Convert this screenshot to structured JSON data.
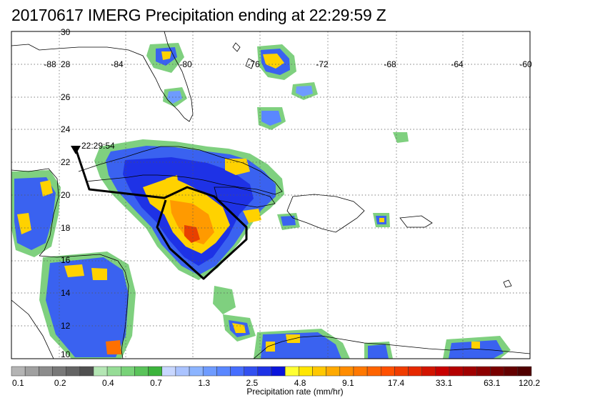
{
  "title": "20170617 IMERG Precipitation ending at 22:29:59 Z",
  "map": {
    "lon_labels": [
      "-88",
      "-84",
      "-80",
      "-76",
      "-72",
      "-68",
      "-64",
      "-60"
    ],
    "lat_labels": [
      "30",
      "28",
      "26",
      "24",
      "22",
      "20",
      "18",
      "16",
      "14",
      "12",
      "10"
    ],
    "track_time_label": "22:29:54"
  },
  "colorbar": {
    "colors": [
      "#b4b4b4",
      "#a0a0a0",
      "#8c8c8c",
      "#787878",
      "#646464",
      "#505050",
      "#b4e6b4",
      "#96dc96",
      "#78d278",
      "#5ac35a",
      "#3cb43c",
      "#c8d7ff",
      "#aac3ff",
      "#8cb4ff",
      "#6e9bff",
      "#5a87ff",
      "#466eff",
      "#3250f0",
      "#1e32e6",
      "#0a14dc",
      "#ffff32",
      "#ffe600",
      "#ffc800",
      "#ffaa00",
      "#ff8c00",
      "#ff7800",
      "#ff6400",
      "#ff5000",
      "#f03c00",
      "#e62800",
      "#d21400",
      "#c80000",
      "#b40000",
      "#a00000",
      "#8c0000",
      "#780000",
      "#640000",
      "#500000"
    ],
    "tick_labels": [
      "0.1",
      "0.2",
      "0.4",
      "0.7",
      "1.3",
      "2.5",
      "4.8",
      "9.1",
      "17.4",
      "33.1",
      "63.1",
      "120.2"
    ],
    "label": "Precipitation rate (mm/hr)"
  }
}
